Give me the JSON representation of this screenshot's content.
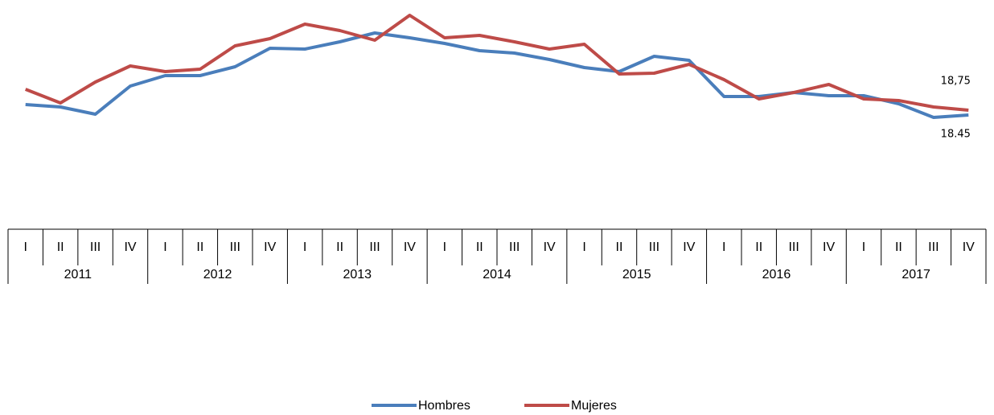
{
  "chart_data": {
    "type": "line",
    "categories": [
      "I",
      "II",
      "III",
      "IV",
      "I",
      "II",
      "III",
      "IV",
      "I",
      "II",
      "III",
      "IV",
      "I",
      "II",
      "III",
      "IV",
      "I",
      "II",
      "III",
      "IV",
      "I",
      "II",
      "III",
      "IV",
      "I",
      "II",
      "III",
      "IV"
    ],
    "years": [
      "2011",
      "2012",
      "2013",
      "2014",
      "2015",
      "2016",
      "2017"
    ],
    "ylim": [
      11.45,
      25.6
    ],
    "legend": "bottom",
    "series": [
      {
        "name": "Hombres",
        "color": "#4a7ebb",
        "values": [
          19.1,
          18.95,
          18.5,
          20.25,
          20.9,
          20.9,
          21.45,
          22.6,
          22.55,
          23.0,
          23.55,
          23.25,
          22.9,
          22.45,
          22.3,
          21.9,
          21.4,
          21.15,
          22.1,
          21.85,
          19.6,
          19.6,
          19.85,
          19.65,
          19.65,
          19.15,
          18.3,
          18.45
        ],
        "value_labels": [
          null,
          null,
          null,
          null,
          null,
          null,
          null,
          null,
          null,
          null,
          null,
          null,
          null,
          null,
          null,
          null,
          null,
          null,
          null,
          null,
          null,
          null,
          null,
          null,
          null,
          null,
          null,
          "18.45"
        ]
      },
      {
        "name": "Mujeres",
        "color": "#be4b48",
        "values": [
          20.05,
          19.2,
          20.5,
          21.5,
          21.15,
          21.3,
          22.75,
          23.2,
          24.1,
          23.7,
          23.1,
          24.65,
          23.25,
          23.4,
          23.0,
          22.55,
          22.85,
          21.0,
          21.05,
          21.6,
          20.65,
          19.45,
          19.85,
          20.35,
          19.45,
          19.35,
          18.95,
          18.75
        ],
        "value_labels": [
          null,
          null,
          null,
          null,
          null,
          null,
          null,
          null,
          null,
          null,
          null,
          null,
          null,
          null,
          null,
          null,
          null,
          null,
          null,
          null,
          null,
          null,
          null,
          null,
          null,
          null,
          null,
          "18,75"
        ]
      }
    ]
  }
}
